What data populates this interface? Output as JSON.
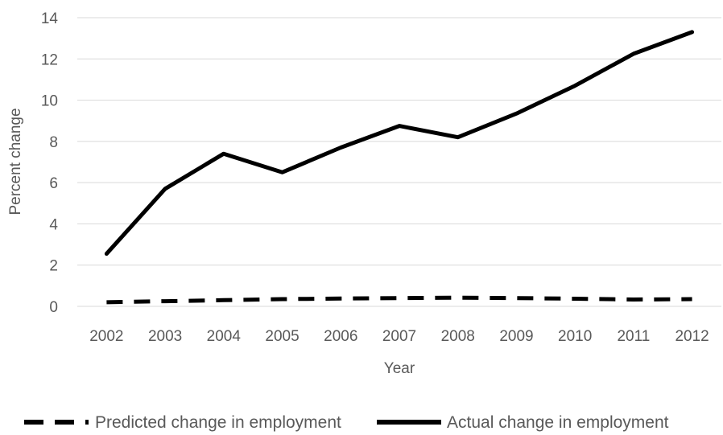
{
  "chart_data": {
    "type": "line",
    "title": "",
    "xlabel": "Year",
    "ylabel": "Percent change",
    "x": [
      "2002",
      "2003",
      "2004",
      "2005",
      "2006",
      "2007",
      "2008",
      "2009",
      "2010",
      "2011",
      "2012"
    ],
    "ylim": [
      0,
      14
    ],
    "yticks": [
      0,
      2,
      4,
      6,
      8,
      10,
      12,
      14
    ],
    "grid": true,
    "legend": "bottom",
    "series": [
      {
        "name": "Predicted change in employment",
        "style": "dashed",
        "color": "#000000",
        "values": [
          0.2,
          0.25,
          0.3,
          0.35,
          0.38,
          0.4,
          0.42,
          0.4,
          0.37,
          0.33,
          0.35
        ]
      },
      {
        "name": "Actual change in employment",
        "style": "solid",
        "color": "#000000",
        "values": [
          2.55,
          5.7,
          7.4,
          6.5,
          7.7,
          8.75,
          8.2,
          9.35,
          10.7,
          12.25,
          13.3
        ]
      }
    ],
    "gridColor": "#d9d9d9"
  }
}
